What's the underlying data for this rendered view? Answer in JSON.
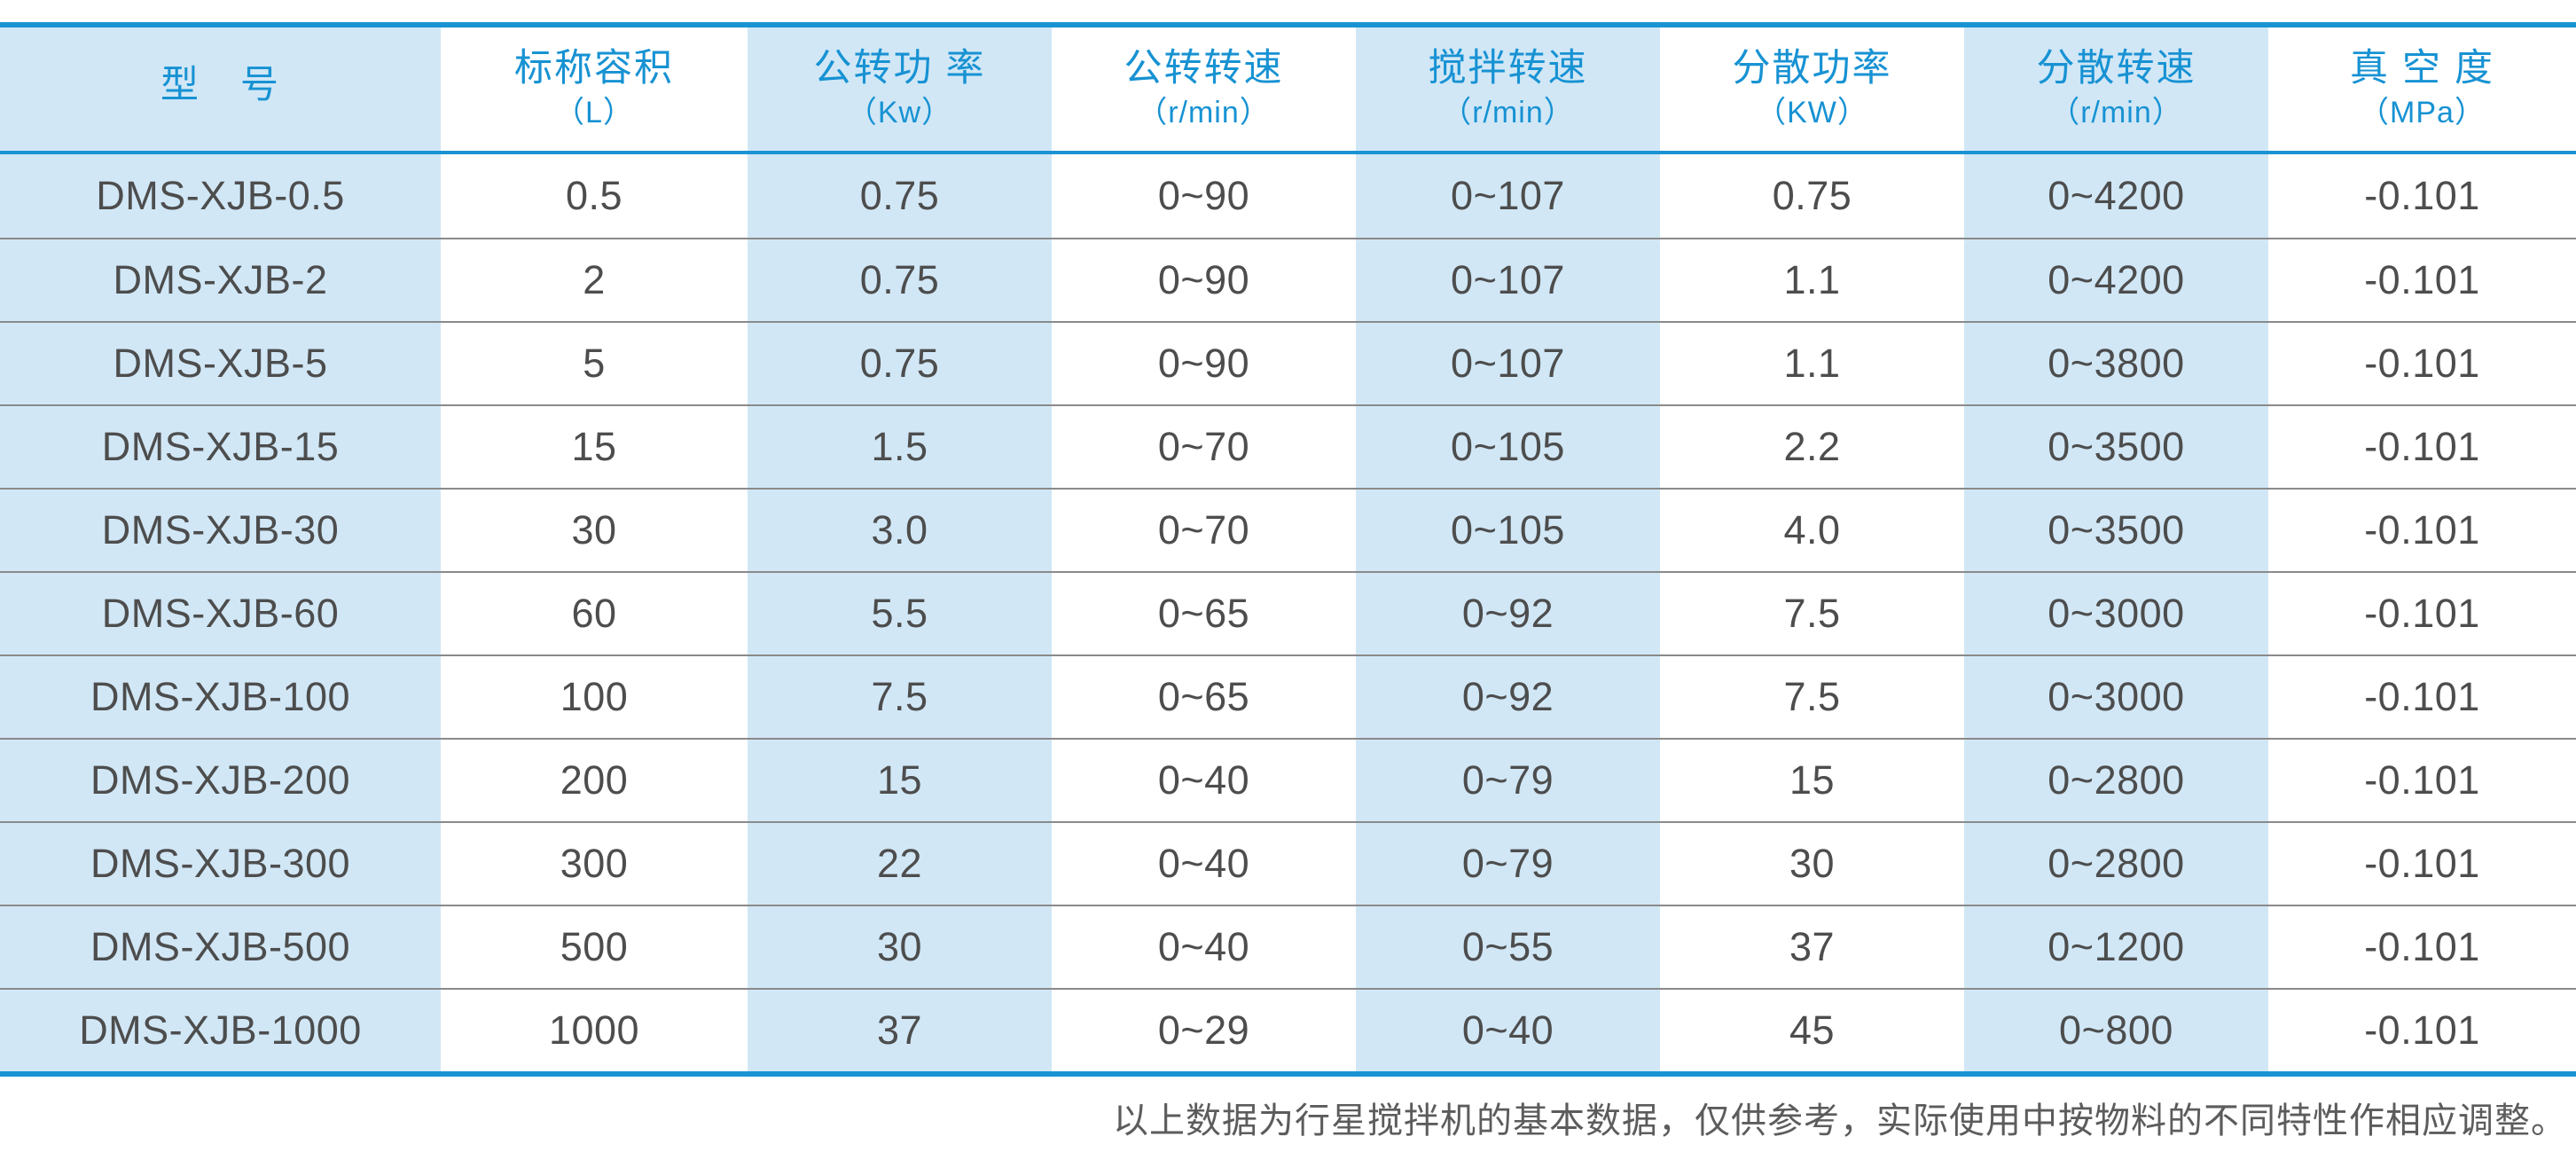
{
  "colors": {
    "accent_blue": "#1792d3",
    "line_blue": "#1a93d3",
    "cell_blue": "#d1e7f6",
    "row_line": "#8a8a8a",
    "text_dark": "#4d4d4d",
    "footer_text": "#5c5c5c"
  },
  "table": {
    "columns": [
      {
        "key": "model",
        "label": "型　号",
        "unit": ""
      },
      {
        "key": "nominal-capacity",
        "label": "标称容积",
        "unit": "（L）"
      },
      {
        "key": "revolution-power",
        "label": "公转功 率",
        "unit": "（Kw）"
      },
      {
        "key": "revolution-speed",
        "label": "公转转速",
        "unit": "（r/min）"
      },
      {
        "key": "stirring-speed",
        "label": "搅拌转速",
        "unit": "（r/min）"
      },
      {
        "key": "dispersion-power",
        "label": "分散功率",
        "unit": "（KW）"
      },
      {
        "key": "dispersion-speed",
        "label": "分散转速",
        "unit": "（r/min）"
      },
      {
        "key": "vacuum-degree",
        "label": "真 空 度",
        "unit": "（MPa）"
      }
    ],
    "rows": [
      {
        "cells": [
          "DMS-XJB-0.5",
          "0.5",
          "0.75",
          "0~90",
          "0~107",
          "0.75",
          "0~4200",
          "-0.101"
        ]
      },
      {
        "cells": [
          "DMS-XJB-2",
          "2",
          "0.75",
          "0~90",
          "0~107",
          "1.1",
          "0~4200",
          "-0.101"
        ]
      },
      {
        "cells": [
          "DMS-XJB-5",
          "5",
          "0.75",
          "0~90",
          "0~107",
          "1.1",
          "0~3800",
          "-0.101"
        ]
      },
      {
        "cells": [
          "DMS-XJB-15",
          "15",
          "1.5",
          "0~70",
          "0~105",
          "2.2",
          "0~3500",
          "-0.101"
        ]
      },
      {
        "cells": [
          "DMS-XJB-30",
          "30",
          "3.0",
          "0~70",
          "0~105",
          "4.0",
          "0~3500",
          "-0.101"
        ]
      },
      {
        "cells": [
          "DMS-XJB-60",
          "60",
          "5.5",
          "0~65",
          "0~92",
          "7.5",
          "0~3000",
          "-0.101"
        ]
      },
      {
        "cells": [
          "DMS-XJB-100",
          "100",
          "7.5",
          "0~65",
          "0~92",
          "7.5",
          "0~3000",
          "-0.101"
        ]
      },
      {
        "cells": [
          "DMS-XJB-200",
          "200",
          "15",
          "0~40",
          "0~79",
          "15",
          "0~2800",
          "-0.101"
        ]
      },
      {
        "cells": [
          "DMS-XJB-300",
          "300",
          "22",
          "0~40",
          "0~79",
          "30",
          "0~2800",
          "-0.101"
        ]
      },
      {
        "cells": [
          "DMS-XJB-500",
          "500",
          "30",
          "0~40",
          "0~55",
          "37",
          "0~1200",
          "-0.101"
        ]
      },
      {
        "cells": [
          "DMS-XJB-1000",
          "1000",
          "37",
          "0~29",
          "0~40",
          "45",
          "0~800",
          "-0.101"
        ]
      }
    ]
  },
  "footer": {
    "note": "以上数据为行星搅拌机的基本数据，仅供参考，实际使用中按物料的不同特性作相应调整。"
  },
  "chart_data": {
    "type": "table",
    "title": "行星搅拌机基本参数表",
    "columns": [
      "型 号",
      "标称容积（L）",
      "公转功 率（Kw）",
      "公转转速（r/min）",
      "搅拌转速（r/min）",
      "分散功率（KW）",
      "分散转速（r/min）",
      "真 空 度（MPa）"
    ],
    "rows": [
      [
        "DMS-XJB-0.5",
        "0.5",
        "0.75",
        "0~90",
        "0~107",
        "0.75",
        "0~4200",
        "-0.101"
      ],
      [
        "DMS-XJB-2",
        "2",
        "0.75",
        "0~90",
        "0~107",
        "1.1",
        "0~4200",
        "-0.101"
      ],
      [
        "DMS-XJB-5",
        "5",
        "0.75",
        "0~90",
        "0~107",
        "1.1",
        "0~3800",
        "-0.101"
      ],
      [
        "DMS-XJB-15",
        "15",
        "1.5",
        "0~70",
        "0~105",
        "2.2",
        "0~3500",
        "-0.101"
      ],
      [
        "DMS-XJB-30",
        "30",
        "3.0",
        "0~70",
        "0~105",
        "4.0",
        "0~3500",
        "-0.101"
      ],
      [
        "DMS-XJB-60",
        "60",
        "5.5",
        "0~65",
        "0~92",
        "7.5",
        "0~3000",
        "-0.101"
      ],
      [
        "DMS-XJB-100",
        "100",
        "7.5",
        "0~65",
        "0~92",
        "7.5",
        "0~3000",
        "-0.101"
      ],
      [
        "DMS-XJB-200",
        "200",
        "15",
        "0~40",
        "0~79",
        "15",
        "0~2800",
        "-0.101"
      ],
      [
        "DMS-XJB-300",
        "300",
        "22",
        "0~40",
        "0~79",
        "30",
        "0~2800",
        "-0.101"
      ],
      [
        "DMS-XJB-500",
        "500",
        "30",
        "0~40",
        "0~55",
        "37",
        "0~1200",
        "-0.101"
      ],
      [
        "DMS-XJB-1000",
        "1000",
        "37",
        "0~29",
        "0~40",
        "45",
        "0~800",
        "-0.101"
      ]
    ],
    "notes": "以上数据为行星搅拌机的基本数据，仅供参考，实际使用中按物料的不同特性作相应调整。",
    "layout": {
      "header_text_color": "#1792d3",
      "striped_columns": true,
      "blue_columns": [
        0,
        2,
        4,
        6
      ]
    }
  }
}
